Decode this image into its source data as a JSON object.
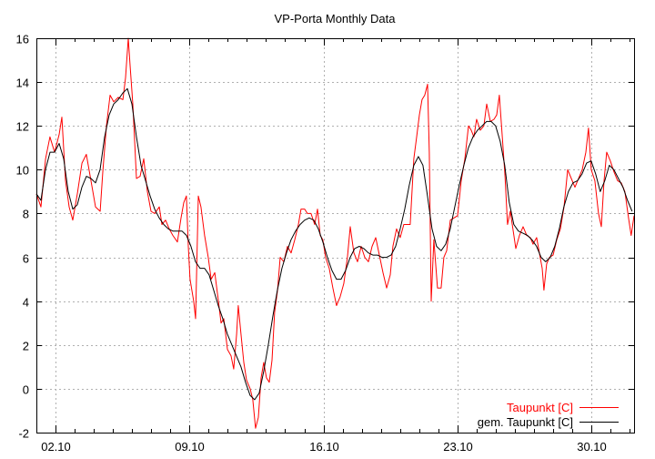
{
  "chart_data": {
    "type": "line",
    "title": "VP-Porta Monthly Data",
    "xlabel": "",
    "ylabel": "",
    "xlim": [
      1,
      32.23
    ],
    "ylim": [
      -2,
      16
    ],
    "grid": true,
    "legend_position": "bottom-right",
    "x_ticks": [
      {
        "value": 2,
        "label": "02.10"
      },
      {
        "value": 9,
        "label": "09.10"
      },
      {
        "value": 16,
        "label": "16.10"
      },
      {
        "value": 23,
        "label": "23.10"
      },
      {
        "value": 30,
        "label": "30.10"
      }
    ],
    "y_ticks": [
      -2,
      0,
      2,
      4,
      6,
      8,
      10,
      12,
      14,
      16
    ],
    "series": [
      {
        "name": "Taupunkt [C]",
        "color": "#ff0000",
        "points": [
          [
            1.0,
            8.9
          ],
          [
            1.24,
            8.3
          ],
          [
            1.48,
            10.5
          ],
          [
            1.71,
            11.5
          ],
          [
            1.95,
            10.8
          ],
          [
            2.19,
            11.6
          ],
          [
            2.33,
            12.4
          ],
          [
            2.52,
            9.5
          ],
          [
            2.71,
            8.3
          ],
          [
            2.9,
            7.7
          ],
          [
            3.14,
            8.9
          ],
          [
            3.38,
            10.3
          ],
          [
            3.61,
            10.7
          ],
          [
            3.85,
            9.5
          ],
          [
            4.09,
            8.3
          ],
          [
            4.33,
            8.1
          ],
          [
            4.47,
            9.9
          ],
          [
            4.66,
            12.0
          ],
          [
            4.85,
            13.4
          ],
          [
            5.04,
            13.1
          ],
          [
            5.28,
            13.3
          ],
          [
            5.52,
            13.2
          ],
          [
            5.66,
            14.2
          ],
          [
            5.8,
            16.0
          ],
          [
            5.9,
            14.7
          ],
          [
            6.04,
            13.0
          ],
          [
            6.23,
            9.6
          ],
          [
            6.42,
            9.7
          ],
          [
            6.61,
            10.5
          ],
          [
            6.8,
            9.0
          ],
          [
            6.99,
            8.1
          ],
          [
            7.18,
            8.0
          ],
          [
            7.42,
            8.3
          ],
          [
            7.56,
            7.5
          ],
          [
            7.75,
            7.7
          ],
          [
            7.94,
            7.3
          ],
          [
            8.13,
            7.0
          ],
          [
            8.37,
            6.7
          ],
          [
            8.56,
            7.8
          ],
          [
            8.7,
            8.5
          ],
          [
            8.84,
            8.8
          ],
          [
            8.94,
            6.5
          ],
          [
            9.03,
            5.0
          ],
          [
            9.22,
            4.0
          ],
          [
            9.32,
            3.2
          ],
          [
            9.46,
            8.8
          ],
          [
            9.6,
            8.3
          ],
          [
            9.79,
            7.0
          ],
          [
            9.98,
            6.0
          ],
          [
            10.13,
            5.0
          ],
          [
            10.32,
            5.3
          ],
          [
            10.51,
            4.0
          ],
          [
            10.65,
            3.0
          ],
          [
            10.79,
            3.2
          ],
          [
            10.98,
            1.8
          ],
          [
            11.17,
            1.5
          ],
          [
            11.31,
            0.9
          ],
          [
            11.46,
            2.5
          ],
          [
            11.55,
            3.8
          ],
          [
            11.69,
            2.5
          ],
          [
            11.84,
            1.2
          ],
          [
            11.98,
            0.4
          ],
          [
            12.17,
            0.0
          ],
          [
            12.31,
            -0.5
          ],
          [
            12.45,
            -1.8
          ],
          [
            12.6,
            -1.3
          ],
          [
            12.74,
            0.5
          ],
          [
            12.88,
            1.2
          ],
          [
            13.02,
            0.5
          ],
          [
            13.17,
            0.3
          ],
          [
            13.31,
            1.3
          ],
          [
            13.45,
            3.5
          ],
          [
            13.6,
            4.5
          ],
          [
            13.74,
            6.0
          ],
          [
            13.93,
            5.8
          ],
          [
            14.12,
            6.5
          ],
          [
            14.31,
            6.2
          ],
          [
            14.5,
            6.8
          ],
          [
            14.69,
            7.5
          ],
          [
            14.83,
            8.2
          ],
          [
            15.02,
            8.2
          ],
          [
            15.16,
            8.0
          ],
          [
            15.35,
            8.0
          ],
          [
            15.54,
            7.5
          ],
          [
            15.69,
            8.2
          ],
          [
            15.83,
            7.0
          ],
          [
            15.97,
            6.8
          ],
          [
            16.11,
            6.0
          ],
          [
            16.3,
            5.5
          ],
          [
            16.49,
            4.6
          ],
          [
            16.68,
            3.8
          ],
          [
            16.87,
            4.2
          ],
          [
            17.06,
            4.8
          ],
          [
            17.25,
            6.0
          ],
          [
            17.4,
            7.4
          ],
          [
            17.59,
            6.2
          ],
          [
            17.78,
            5.8
          ],
          [
            17.97,
            6.5
          ],
          [
            18.16,
            6.0
          ],
          [
            18.35,
            5.8
          ],
          [
            18.54,
            6.5
          ],
          [
            18.73,
            6.9
          ],
          [
            18.92,
            6.1
          ],
          [
            19.11,
            5.3
          ],
          [
            19.3,
            4.6
          ],
          [
            19.49,
            5.2
          ],
          [
            19.63,
            6.5
          ],
          [
            19.82,
            7.3
          ],
          [
            20.01,
            6.9
          ],
          [
            20.2,
            7.5
          ],
          [
            20.34,
            7.5
          ],
          [
            20.53,
            7.5
          ],
          [
            20.72,
            10.5
          ],
          [
            20.87,
            11.5
          ],
          [
            21.01,
            12.5
          ],
          [
            21.15,
            13.2
          ],
          [
            21.29,
            13.4
          ],
          [
            21.44,
            13.9
          ],
          [
            21.53,
            10.8
          ],
          [
            21.63,
            4.0
          ],
          [
            21.77,
            6.8
          ],
          [
            21.96,
            4.6
          ],
          [
            22.15,
            4.6
          ],
          [
            22.29,
            6.0
          ],
          [
            22.44,
            6.3
          ],
          [
            22.63,
            7.7
          ],
          [
            22.82,
            7.8
          ],
          [
            23.01,
            7.9
          ],
          [
            23.2,
            9.5
          ],
          [
            23.39,
            10.5
          ],
          [
            23.58,
            12.0
          ],
          [
            23.72,
            11.8
          ],
          [
            23.86,
            11.5
          ],
          [
            24.0,
            12.3
          ],
          [
            24.19,
            11.8
          ],
          [
            24.38,
            12.0
          ],
          [
            24.53,
            13.0
          ],
          [
            24.72,
            12.2
          ],
          [
            24.91,
            12.3
          ],
          [
            25.05,
            12.5
          ],
          [
            25.19,
            13.4
          ],
          [
            25.33,
            11.7
          ],
          [
            25.48,
            9.8
          ],
          [
            25.62,
            7.5
          ],
          [
            25.76,
            8.1
          ],
          [
            25.9,
            7.3
          ],
          [
            26.05,
            6.4
          ],
          [
            26.24,
            7.0
          ],
          [
            26.43,
            7.4
          ],
          [
            26.62,
            7.0
          ],
          [
            26.81,
            6.9
          ],
          [
            26.95,
            6.6
          ],
          [
            27.14,
            6.9
          ],
          [
            27.28,
            6.2
          ],
          [
            27.43,
            5.5
          ],
          [
            27.52,
            4.5
          ],
          [
            27.66,
            5.7
          ],
          [
            27.81,
            6.0
          ],
          [
            28.0,
            6.1
          ],
          [
            28.19,
            6.8
          ],
          [
            28.38,
            7.3
          ],
          [
            28.57,
            8.3
          ],
          [
            28.76,
            10.0
          ],
          [
            28.95,
            9.6
          ],
          [
            29.14,
            9.2
          ],
          [
            29.33,
            9.6
          ],
          [
            29.52,
            10.0
          ],
          [
            29.71,
            10.8
          ],
          [
            29.85,
            11.9
          ],
          [
            29.99,
            10.0
          ],
          [
            30.18,
            9.5
          ],
          [
            30.37,
            8.0
          ],
          [
            30.52,
            7.4
          ],
          [
            30.66,
            9.5
          ],
          [
            30.8,
            10.8
          ],
          [
            30.99,
            10.4
          ],
          [
            31.18,
            9.9
          ],
          [
            31.37,
            9.5
          ],
          [
            31.56,
            9.4
          ],
          [
            31.75,
            9.0
          ],
          [
            31.94,
            7.8
          ],
          [
            32.08,
            7.0
          ],
          [
            32.23,
            7.9
          ]
        ]
      },
      {
        "name": "gem. Taupunkt [C]",
        "color": "#000000",
        "x_start": 1,
        "x_step": 0.2376,
        "values": [
          8.9,
          8.6,
          10.0,
          10.8,
          10.8,
          11.2,
          10.5,
          9.0,
          8.2,
          8.4,
          9.2,
          9.7,
          9.6,
          9.4,
          10.0,
          11.5,
          12.5,
          13.0,
          13.2,
          13.5,
          13.7,
          13.0,
          11.5,
          10.2,
          9.5,
          8.8,
          8.2,
          7.8,
          7.5,
          7.3,
          7.2,
          7.2,
          7.2,
          7.0,
          6.5,
          5.8,
          5.5,
          5.5,
          5.2,
          4.5,
          3.8,
          3.2,
          2.5,
          2.0,
          1.5,
          1.0,
          0.3,
          -0.3,
          -0.5,
          -0.2,
          0.8,
          2.0,
          3.3,
          4.5,
          5.5,
          6.2,
          6.8,
          7.2,
          7.5,
          7.7,
          7.8,
          7.7,
          7.3,
          6.7,
          6.0,
          5.4,
          5.0,
          5.0,
          5.4,
          6.0,
          6.4,
          6.5,
          6.4,
          6.2,
          6.1,
          6.1,
          6.0,
          6.0,
          6.1,
          6.5,
          7.3,
          8.2,
          9.3,
          10.2,
          10.6,
          10.2,
          8.8,
          7.3,
          6.5,
          6.3,
          6.6,
          7.3,
          8.3,
          9.3,
          10.2,
          11.0,
          11.5,
          11.8,
          12.0,
          12.2,
          12.2,
          12.0,
          11.3,
          10.2,
          8.5,
          7.5,
          7.2,
          7.1,
          7.0,
          6.8,
          6.5,
          6.0,
          5.8,
          6.0,
          6.5,
          7.3,
          8.3,
          9.0,
          9.4,
          9.5,
          9.8,
          10.3,
          10.4,
          9.8,
          9.0,
          9.5,
          10.2,
          10.0,
          9.6,
          9.2,
          8.6,
          8.1
        ]
      }
    ]
  }
}
